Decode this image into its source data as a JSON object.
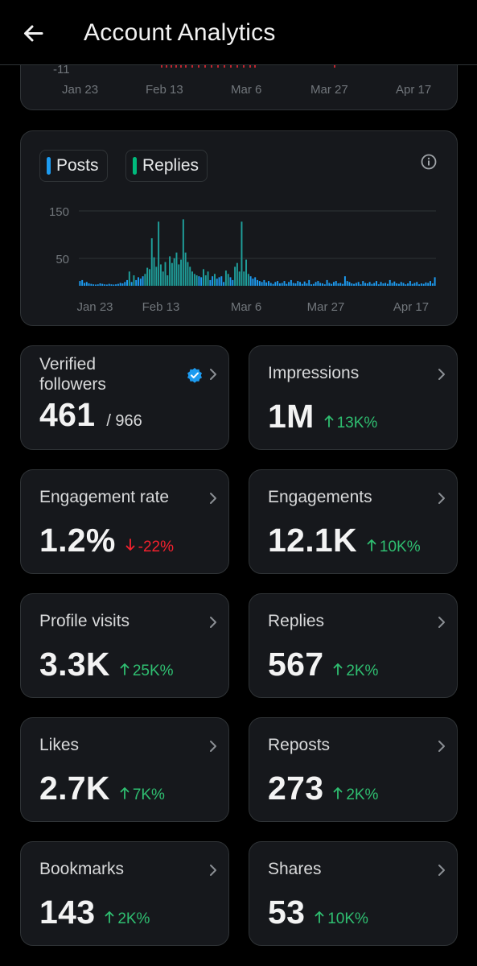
{
  "header": {
    "title": "Account Analytics"
  },
  "top_chart": {
    "ytick": "-11",
    "xticks": [
      "Jan 23",
      "Feb 13",
      "Mar 6",
      "Mar 27",
      "Apr 17"
    ]
  },
  "chart_data": {
    "type": "bar",
    "series": [
      {
        "name": "Posts",
        "color": "#1d9bf0"
      },
      {
        "name": "Replies",
        "color": "#00ba7c"
      }
    ],
    "yticks": [
      150,
      50
    ],
    "ylim": [
      0,
      160
    ],
    "xticks": [
      "Jan 23",
      "Feb 13",
      "Mar 6",
      "Mar 27",
      "Apr 17"
    ],
    "grid": true,
    "values": [
      10,
      12,
      6,
      8,
      5,
      4,
      3,
      2,
      3,
      5,
      4,
      3,
      2,
      4,
      3,
      2,
      3,
      4,
      6,
      5,
      8,
      12,
      30,
      8,
      22,
      12,
      18,
      15,
      20,
      25,
      38,
      35,
      100,
      60,
      40,
      135,
      45,
      30,
      50,
      22,
      62,
      48,
      58,
      70,
      45,
      55,
      140,
      70,
      50,
      40,
      30,
      25,
      22,
      20,
      18,
      35,
      22,
      30,
      12,
      20,
      25,
      15,
      18,
      20,
      8,
      32,
      25,
      18,
      12,
      40,
      48,
      30,
      135,
      30,
      55,
      25,
      20,
      15,
      18,
      12,
      10,
      8,
      12,
      7,
      10,
      6,
      4,
      8,
      10,
      5,
      6,
      10,
      4,
      8,
      12,
      6,
      5,
      10,
      8,
      4,
      9,
      5,
      12,
      3,
      4,
      8,
      10,
      6,
      5,
      3,
      12,
      6,
      4,
      8,
      10,
      5,
      6,
      4,
      20,
      10,
      8,
      5,
      4,
      6,
      8,
      3,
      10,
      6,
      5,
      8,
      4,
      6,
      10,
      3,
      8,
      5,
      6,
      4,
      12,
      6,
      9,
      5,
      4,
      8,
      6,
      3,
      5,
      10,
      4,
      6,
      8,
      3,
      5,
      4,
      7,
      6,
      10,
      5,
      18
    ]
  },
  "metrics": [
    {
      "label": "Verified followers",
      "value": "461",
      "sub": "/ 966"
    },
    {
      "label": "Impressions",
      "value": "1M",
      "delta": "13K%",
      "dir": "up"
    },
    {
      "label": "Engagement rate",
      "value": "1.2%",
      "delta": "-22%",
      "dir": "down"
    },
    {
      "label": "Engagements",
      "value": "12.1K",
      "delta": "10K%",
      "dir": "up"
    },
    {
      "label": "Profile visits",
      "value": "3.3K",
      "delta": "25K%",
      "dir": "up"
    },
    {
      "label": "Replies",
      "value": "567",
      "delta": "2K%",
      "dir": "up"
    },
    {
      "label": "Likes",
      "value": "2.7K",
      "delta": "7K%",
      "dir": "up"
    },
    {
      "label": "Reposts",
      "value": "273",
      "delta": "2K%",
      "dir": "up"
    },
    {
      "label": "Bookmarks",
      "value": "143",
      "delta": "2K%",
      "dir": "up"
    },
    {
      "label": "Shares",
      "value": "53",
      "delta": "10K%",
      "dir": "up"
    }
  ],
  "icons": {
    "back": "arrow-left-icon",
    "info": "info-icon",
    "chevron": "chevron-right-icon",
    "verified": "verified-badge-icon"
  },
  "colors": {
    "up": "#2fbf71",
    "down": "#f4212e",
    "accent": "#1d9bf0"
  }
}
